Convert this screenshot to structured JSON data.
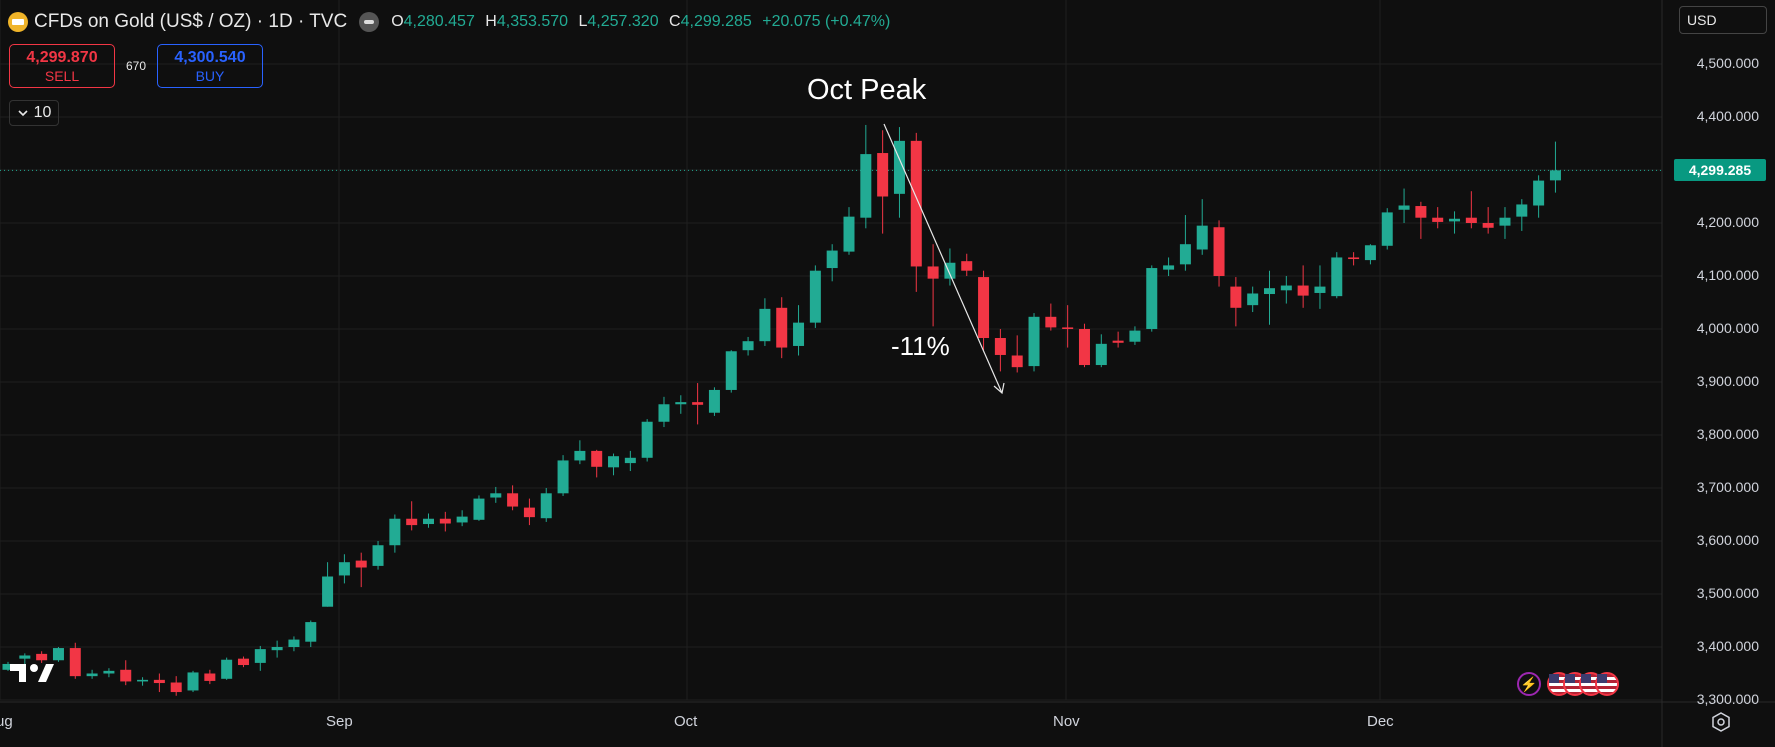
{
  "header": {
    "symbol": "CFDs on Gold (US$ / OZ) · 1D · TVC",
    "symbol_icon": "gold-bars-icon",
    "market_icon": "market-status-icon",
    "ohlc": {
      "o_label": "O",
      "o": "4,280.457",
      "h_label": "H",
      "h": "4,353.570",
      "l_label": "L",
      "l": "4,257.320",
      "c_label": "C",
      "c": "4,299.285",
      "change": "+20.075 (+0.47%)"
    }
  },
  "trade": {
    "sell_price": "4,299.870",
    "sell_label": "SELL",
    "spread": "670",
    "buy_price": "4,300.540",
    "buy_label": "BUY"
  },
  "volume_toggle": {
    "icon": "chevron-down-icon",
    "value": "10"
  },
  "currency": {
    "label": "USD",
    "icon": "chevron-down-icon"
  },
  "last_price_label": "4,299.285",
  "annotations": {
    "peak": "Oct Peak",
    "drop": "-11%"
  },
  "colors": {
    "up": "#22ab94",
    "down": "#f23645",
    "background": "#0f0f0f",
    "grid": "#1f1f1f",
    "price_tag": "#089981"
  },
  "chart_data": {
    "type": "candlestick",
    "title": "CFDs on Gold (US$ / OZ) · 1D · TVC",
    "ylim": [
      3280,
      4550
    ],
    "y_ticks": [
      "4,500.000",
      "4,400.000",
      "4,300.000",
      "4,200.000",
      "4,100.000",
      "4,000.000",
      "3,900.000",
      "3,800.000",
      "3,700.000",
      "3,600.000",
      "3,500.000",
      "3,400.000",
      "3,300.000"
    ],
    "x_ticks": [
      "Aug",
      "Sep",
      "Oct",
      "Nov",
      "Dec"
    ],
    "last_price": 4299.285,
    "grid": true,
    "candles": [
      {
        "o": 3357,
        "h": 3372,
        "l": 3355,
        "c": 3368
      },
      {
        "o": 3378,
        "h": 3388,
        "l": 3358,
        "c": 3384
      },
      {
        "o": 3387,
        "h": 3392,
        "l": 3370,
        "c": 3375
      },
      {
        "o": 3375,
        "h": 3400,
        "l": 3372,
        "c": 3398
      },
      {
        "o": 3398,
        "h": 3408,
        "l": 3340,
        "c": 3345
      },
      {
        "o": 3345,
        "h": 3357,
        "l": 3340,
        "c": 3350
      },
      {
        "o": 3350,
        "h": 3360,
        "l": 3343,
        "c": 3355
      },
      {
        "o": 3357,
        "h": 3375,
        "l": 3328,
        "c": 3335
      },
      {
        "o": 3335,
        "h": 3343,
        "l": 3327,
        "c": 3338
      },
      {
        "o": 3338,
        "h": 3350,
        "l": 3315,
        "c": 3332
      },
      {
        "o": 3333,
        "h": 3345,
        "l": 3308,
        "c": 3315
      },
      {
        "o": 3318,
        "h": 3355,
        "l": 3315,
        "c": 3352
      },
      {
        "o": 3350,
        "h": 3357,
        "l": 3330,
        "c": 3336
      },
      {
        "o": 3340,
        "h": 3380,
        "l": 3338,
        "c": 3376
      },
      {
        "o": 3378,
        "h": 3382,
        "l": 3362,
        "c": 3366
      },
      {
        "o": 3370,
        "h": 3402,
        "l": 3355,
        "c": 3396
      },
      {
        "o": 3394,
        "h": 3412,
        "l": 3380,
        "c": 3400
      },
      {
        "o": 3400,
        "h": 3420,
        "l": 3392,
        "c": 3414
      },
      {
        "o": 3410,
        "h": 3450,
        "l": 3400,
        "c": 3447
      },
      {
        "o": 3476,
        "h": 3560,
        "l": 3476,
        "c": 3533
      },
      {
        "o": 3535,
        "h": 3575,
        "l": 3520,
        "c": 3560
      },
      {
        "o": 3563,
        "h": 3578,
        "l": 3513,
        "c": 3550
      },
      {
        "o": 3553,
        "h": 3600,
        "l": 3546,
        "c": 3592
      },
      {
        "o": 3592,
        "h": 3650,
        "l": 3578,
        "c": 3642
      },
      {
        "o": 3642,
        "h": 3675,
        "l": 3620,
        "c": 3630
      },
      {
        "o": 3632,
        "h": 3652,
        "l": 3625,
        "c": 3642
      },
      {
        "o": 3642,
        "h": 3655,
        "l": 3618,
        "c": 3633
      },
      {
        "o": 3635,
        "h": 3658,
        "l": 3628,
        "c": 3646
      },
      {
        "o": 3640,
        "h": 3686,
        "l": 3638,
        "c": 3680
      },
      {
        "o": 3682,
        "h": 3702,
        "l": 3672,
        "c": 3690
      },
      {
        "o": 3690,
        "h": 3705,
        "l": 3658,
        "c": 3665
      },
      {
        "o": 3663,
        "h": 3680,
        "l": 3630,
        "c": 3645
      },
      {
        "o": 3643,
        "h": 3700,
        "l": 3636,
        "c": 3690
      },
      {
        "o": 3690,
        "h": 3762,
        "l": 3685,
        "c": 3752
      },
      {
        "o": 3752,
        "h": 3790,
        "l": 3745,
        "c": 3770
      },
      {
        "o": 3770,
        "h": 3772,
        "l": 3720,
        "c": 3740
      },
      {
        "o": 3739,
        "h": 3765,
        "l": 3724,
        "c": 3760
      },
      {
        "o": 3747,
        "h": 3770,
        "l": 3732,
        "c": 3757
      },
      {
        "o": 3757,
        "h": 3830,
        "l": 3750,
        "c": 3825
      },
      {
        "o": 3825,
        "h": 3872,
        "l": 3815,
        "c": 3858
      },
      {
        "o": 3858,
        "h": 3875,
        "l": 3840,
        "c": 3862
      },
      {
        "o": 3862,
        "h": 3898,
        "l": 3820,
        "c": 3857
      },
      {
        "o": 3842,
        "h": 3890,
        "l": 3836,
        "c": 3885
      },
      {
        "o": 3885,
        "h": 3960,
        "l": 3880,
        "c": 3958
      },
      {
        "o": 3960,
        "h": 3985,
        "l": 3950,
        "c": 3977
      },
      {
        "o": 3977,
        "h": 4058,
        "l": 3968,
        "c": 4038
      },
      {
        "o": 4040,
        "h": 4060,
        "l": 3945,
        "c": 3965
      },
      {
        "o": 3968,
        "h": 4045,
        "l": 3950,
        "c": 4012
      },
      {
        "o": 4012,
        "h": 4120,
        "l": 4002,
        "c": 4110
      },
      {
        "o": 4115,
        "h": 4160,
        "l": 4090,
        "c": 4148
      },
      {
        "o": 4146,
        "h": 4230,
        "l": 4140,
        "c": 4212
      },
      {
        "o": 4210,
        "h": 4385,
        "l": 4190,
        "c": 4330
      },
      {
        "o": 4332,
        "h": 4375,
        "l": 4180,
        "c": 4250
      },
      {
        "o": 4255,
        "h": 4381,
        "l": 4210,
        "c": 4355
      },
      {
        "o": 4355,
        "h": 4370,
        "l": 4070,
        "c": 4118
      },
      {
        "o": 4118,
        "h": 4160,
        "l": 4005,
        "c": 4095
      },
      {
        "o": 4095,
        "h": 4152,
        "l": 4082,
        "c": 4125
      },
      {
        "o": 4128,
        "h": 4142,
        "l": 4100,
        "c": 4110
      },
      {
        "o": 4098,
        "h": 4110,
        "l": 3960,
        "c": 3983
      },
      {
        "o": 3983,
        "h": 4000,
        "l": 3920,
        "c": 3951
      },
      {
        "o": 3950,
        "h": 3988,
        "l": 3918,
        "c": 3928
      },
      {
        "o": 3930,
        "h": 4030,
        "l": 3920,
        "c": 4023
      },
      {
        "o": 4023,
        "h": 4048,
        "l": 3997,
        "c": 4003
      },
      {
        "o": 4003,
        "h": 4045,
        "l": 3965,
        "c": 4000
      },
      {
        "o": 4000,
        "h": 4010,
        "l": 3928,
        "c": 3932
      },
      {
        "o": 3932,
        "h": 3990,
        "l": 3928,
        "c": 3972
      },
      {
        "o": 3978,
        "h": 3995,
        "l": 3965,
        "c": 3974
      },
      {
        "o": 3976,
        "h": 4005,
        "l": 3970,
        "c": 3997
      },
      {
        "o": 4000,
        "h": 4120,
        "l": 3995,
        "c": 4115
      },
      {
        "o": 4112,
        "h": 4135,
        "l": 4100,
        "c": 4120
      },
      {
        "o": 4122,
        "h": 4215,
        "l": 4110,
        "c": 4160
      },
      {
        "o": 4150,
        "h": 4245,
        "l": 4140,
        "c": 4195
      },
      {
        "o": 4192,
        "h": 4205,
        "l": 4080,
        "c": 4100
      },
      {
        "o": 4080,
        "h": 4098,
        "l": 4005,
        "c": 4040
      },
      {
        "o": 4045,
        "h": 4080,
        "l": 4032,
        "c": 4067
      },
      {
        "o": 4066,
        "h": 4110,
        "l": 4008,
        "c": 4077
      },
      {
        "o": 4073,
        "h": 4100,
        "l": 4048,
        "c": 4082
      },
      {
        "o": 4082,
        "h": 4120,
        "l": 4040,
        "c": 4063
      },
      {
        "o": 4068,
        "h": 4120,
        "l": 4038,
        "c": 4080
      },
      {
        "o": 4062,
        "h": 4145,
        "l": 4058,
        "c": 4135
      },
      {
        "o": 4135,
        "h": 4145,
        "l": 4120,
        "c": 4132
      },
      {
        "o": 4130,
        "h": 4160,
        "l": 4122,
        "c": 4158
      },
      {
        "o": 4157,
        "h": 4228,
        "l": 4150,
        "c": 4220
      },
      {
        "o": 4225,
        "h": 4265,
        "l": 4200,
        "c": 4233
      },
      {
        "o": 4232,
        "h": 4240,
        "l": 4170,
        "c": 4210
      },
      {
        "o": 4210,
        "h": 4230,
        "l": 4190,
        "c": 4202
      },
      {
        "o": 4203,
        "h": 4222,
        "l": 4180,
        "c": 4208
      },
      {
        "o": 4210,
        "h": 4260,
        "l": 4190,
        "c": 4200
      },
      {
        "o": 4200,
        "h": 4230,
        "l": 4180,
        "c": 4191
      },
      {
        "o": 4195,
        "h": 4230,
        "l": 4170,
        "c": 4210
      },
      {
        "o": 4212,
        "h": 4245,
        "l": 4185,
        "c": 4235
      },
      {
        "o": 4233,
        "h": 4290,
        "l": 4210,
        "c": 4280
      },
      {
        "o": 4280.457,
        "h": 4353.57,
        "l": 4257.32,
        "c": 4299.285
      }
    ]
  }
}
